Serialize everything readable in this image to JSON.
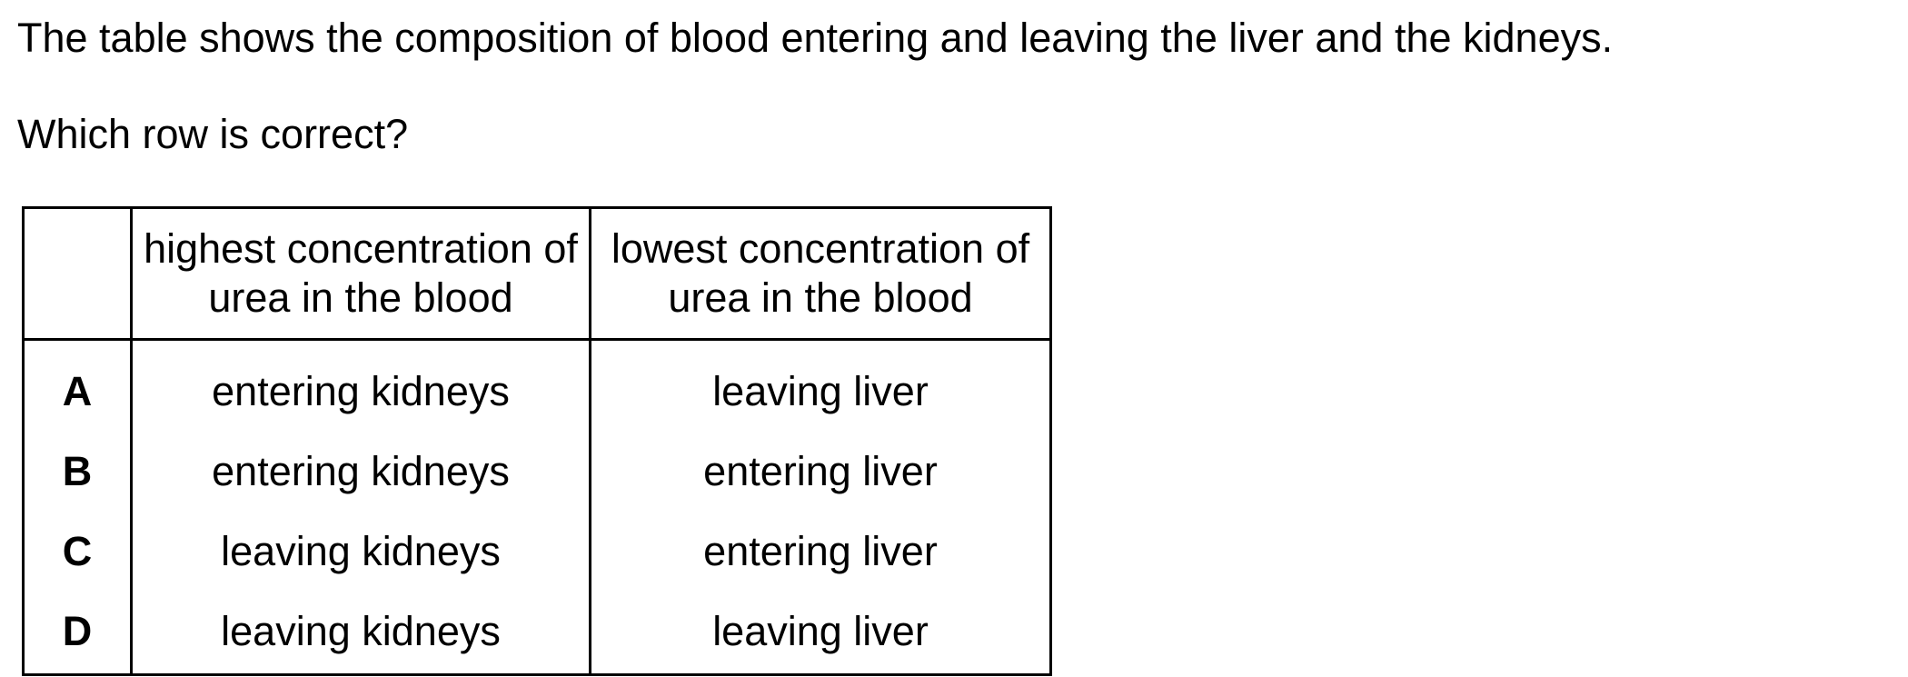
{
  "intro_text": "The table shows the composition of blood entering and leaving the liver and the kidneys.",
  "question_text": "Which row is correct?",
  "table": {
    "headers": [
      "",
      "highest concentration of urea in the blood",
      "lowest concentration of urea in the blood"
    ],
    "rows": [
      {
        "option": "A",
        "highest": "entering kidneys",
        "lowest": "leaving liver"
      },
      {
        "option": "B",
        "highest": "entering kidneys",
        "lowest": "entering liver"
      },
      {
        "option": "C",
        "highest": "leaving kidneys",
        "lowest": "entering liver"
      },
      {
        "option": "D",
        "highest": "leaving kidneys",
        "lowest": "leaving liver"
      }
    ]
  }
}
